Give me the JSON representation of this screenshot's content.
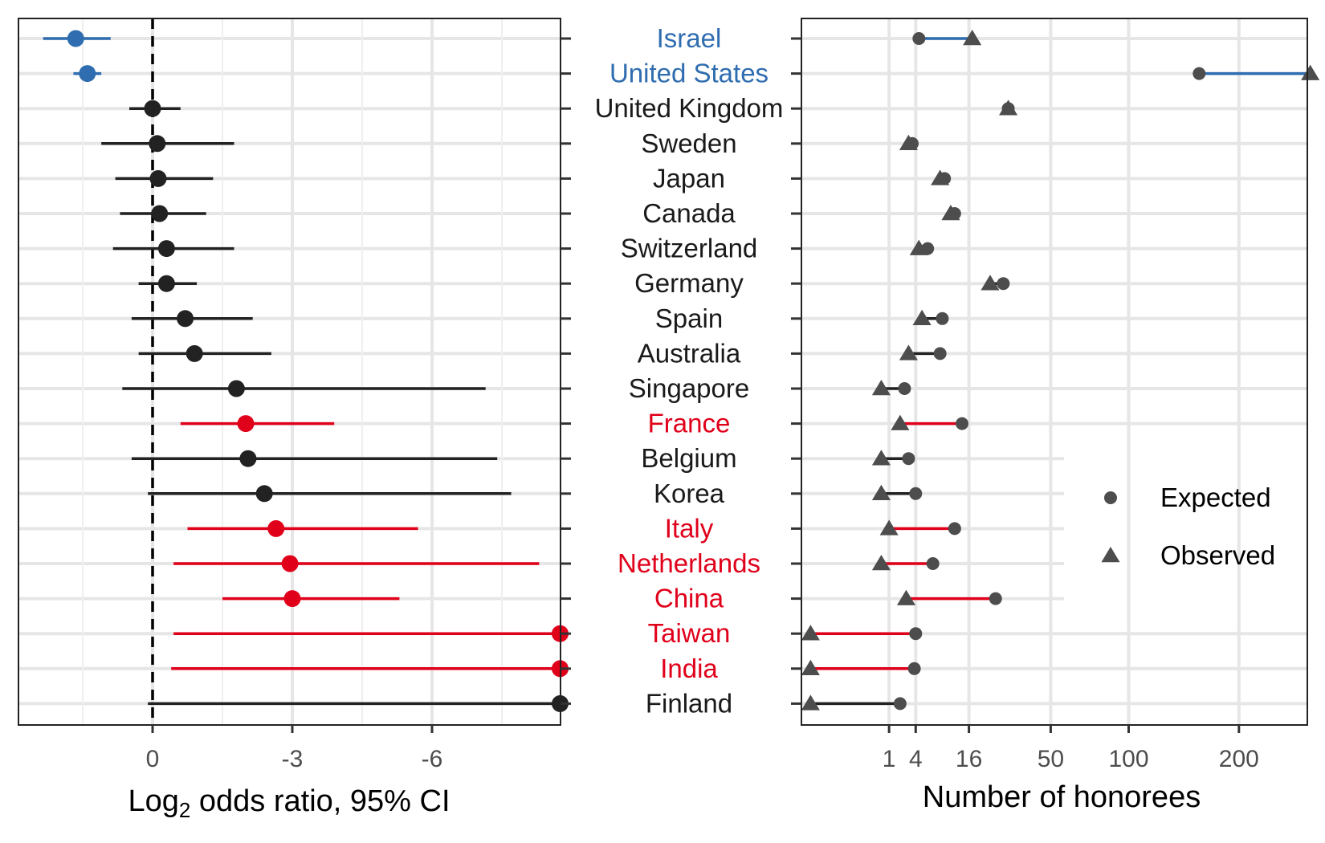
{
  "colors": {
    "blue": "#2f6db0",
    "red": "#e0001a",
    "black": "#222222",
    "grey": "#4d4d4d",
    "grid": "#e6e6e6"
  },
  "chart_data": [
    {
      "type": "scatter",
      "subtype": "forest-plot",
      "xlabel_main": "Log",
      "xlabel_sub": "2",
      "xlabel_rest": " odds ratio, 95% CI",
      "xticks": [
        {
          "value": 0,
          "label": "0"
        },
        {
          "value": 3,
          "label": "-3"
        },
        {
          "value": 6,
          "label": "-6"
        }
      ],
      "xlim": [
        -2.9,
        8.75
      ],
      "reference_line": 0,
      "grid": true,
      "rows": [
        {
          "country": "Israel",
          "group": "blue",
          "estimate": -1.65,
          "ci_low": -2.35,
          "ci_high": -0.9
        },
        {
          "country": "United States",
          "group": "blue",
          "estimate": -1.4,
          "ci_low": -1.7,
          "ci_high": -1.1
        },
        {
          "country": "United Kingdom",
          "group": "black",
          "estimate": 0.0,
          "ci_low": -0.5,
          "ci_high": 0.6
        },
        {
          "country": "Sweden",
          "group": "black",
          "estimate": 0.1,
          "ci_low": -1.1,
          "ci_high": 1.75
        },
        {
          "country": "Japan",
          "group": "black",
          "estimate": 0.12,
          "ci_low": -0.8,
          "ci_high": 1.3
        },
        {
          "country": "Canada",
          "group": "black",
          "estimate": 0.15,
          "ci_low": -0.7,
          "ci_high": 1.15
        },
        {
          "country": "Switzerland",
          "group": "black",
          "estimate": 0.3,
          "ci_low": -0.85,
          "ci_high": 1.75
        },
        {
          "country": "Germany",
          "group": "black",
          "estimate": 0.3,
          "ci_low": -0.3,
          "ci_high": 0.95
        },
        {
          "country": "Spain",
          "group": "black",
          "estimate": 0.7,
          "ci_low": -0.45,
          "ci_high": 2.15
        },
        {
          "country": "Australia",
          "group": "black",
          "estimate": 0.9,
          "ci_low": -0.3,
          "ci_high": 2.55
        },
        {
          "country": "Singapore",
          "group": "black",
          "estimate": 1.8,
          "ci_low": -0.65,
          "ci_high": 7.15
        },
        {
          "country": "France",
          "group": "red",
          "estimate": 2.0,
          "ci_low": 0.6,
          "ci_high": 3.9
        },
        {
          "country": "Belgium",
          "group": "black",
          "estimate": 2.05,
          "ci_low": -0.45,
          "ci_high": 7.4
        },
        {
          "country": "Korea",
          "group": "black",
          "estimate": 2.4,
          "ci_low": -0.1,
          "ci_high": 7.7
        },
        {
          "country": "Italy",
          "group": "red",
          "estimate": 2.65,
          "ci_low": 0.75,
          "ci_high": 5.7
        },
        {
          "country": "Netherlands",
          "group": "red",
          "estimate": 2.95,
          "ci_low": 0.45,
          "ci_high": 8.3
        },
        {
          "country": "China",
          "group": "red",
          "estimate": 3.0,
          "ci_low": 1.5,
          "ci_high": 5.3
        },
        {
          "country": "Taiwan",
          "group": "red",
          "estimate": 8.75,
          "ci_low": 0.45,
          "ci_high": 8.75
        },
        {
          "country": "India",
          "group": "red",
          "estimate": 8.75,
          "ci_low": 0.4,
          "ci_high": 8.75
        },
        {
          "country": "Finland",
          "group": "black",
          "estimate": 8.75,
          "ci_low": -0.1,
          "ci_high": 8.75
        }
      ]
    },
    {
      "type": "scatter",
      "subtype": "dumbbell",
      "xlabel": "Number of honorees",
      "xscale": "sqrt",
      "xticks": [
        1,
        4,
        16,
        50,
        100,
        200
      ],
      "xlim": [
        -4.5,
        275
      ],
      "grid": true,
      "legend": {
        "position": "right",
        "entries": [
          {
            "label": "Expected",
            "shape": "circle"
          },
          {
            "label": "Observed",
            "shape": "triangle"
          }
        ]
      },
      "rows": [
        {
          "country": "Israel",
          "group": "blue",
          "expected": 4.5,
          "observed": 17
        },
        {
          "country": "United States",
          "group": "blue",
          "expected": 160,
          "observed": 283
        },
        {
          "country": "United Kingdom",
          "group": "grey",
          "expected": 30,
          "observed": 30
        },
        {
          "country": "Sweden",
          "group": "grey",
          "expected": 3.5,
          "observed": 3.0
        },
        {
          "country": "Japan",
          "group": "grey",
          "expected": 9.5,
          "observed": 8.5
        },
        {
          "country": "Canada",
          "group": "grey",
          "expected": 12,
          "observed": 11
        },
        {
          "country": "Switzerland",
          "group": "grey",
          "expected": 6.0,
          "observed": 4.5
        },
        {
          "country": "Germany",
          "group": "grey",
          "expected": 28,
          "observed": 23
        },
        {
          "country": "Spain",
          "group": "grey",
          "expected": 9.0,
          "observed": 5.0
        },
        {
          "country": "Australia",
          "group": "grey",
          "expected": 8.5,
          "observed": 3.0
        },
        {
          "country": "Singapore",
          "group": "grey",
          "expected": 2.5,
          "observed": 0.5
        },
        {
          "country": "France",
          "group": "red",
          "expected": 14,
          "observed": 2.0
        },
        {
          "country": "Belgium",
          "group": "grey",
          "expected": 3.0,
          "observed": 0.5
        },
        {
          "country": "Korea",
          "group": "grey",
          "expected": 4.0,
          "observed": 0.5
        },
        {
          "country": "Italy",
          "group": "red",
          "expected": 12,
          "observed": 1.0
        },
        {
          "country": "Netherlands",
          "group": "red",
          "expected": 7.0,
          "observed": 0.5
        },
        {
          "country": "China",
          "group": "red",
          "expected": 25,
          "observed": 2.7
        },
        {
          "country": "Taiwan",
          "group": "red",
          "expected": 4.0,
          "observed": -3.8
        },
        {
          "country": "India",
          "group": "red",
          "expected": 3.8,
          "observed": -3.8
        },
        {
          "country": "Finland",
          "group": "grey",
          "expected": 2.0,
          "observed": -3.8
        }
      ]
    }
  ]
}
